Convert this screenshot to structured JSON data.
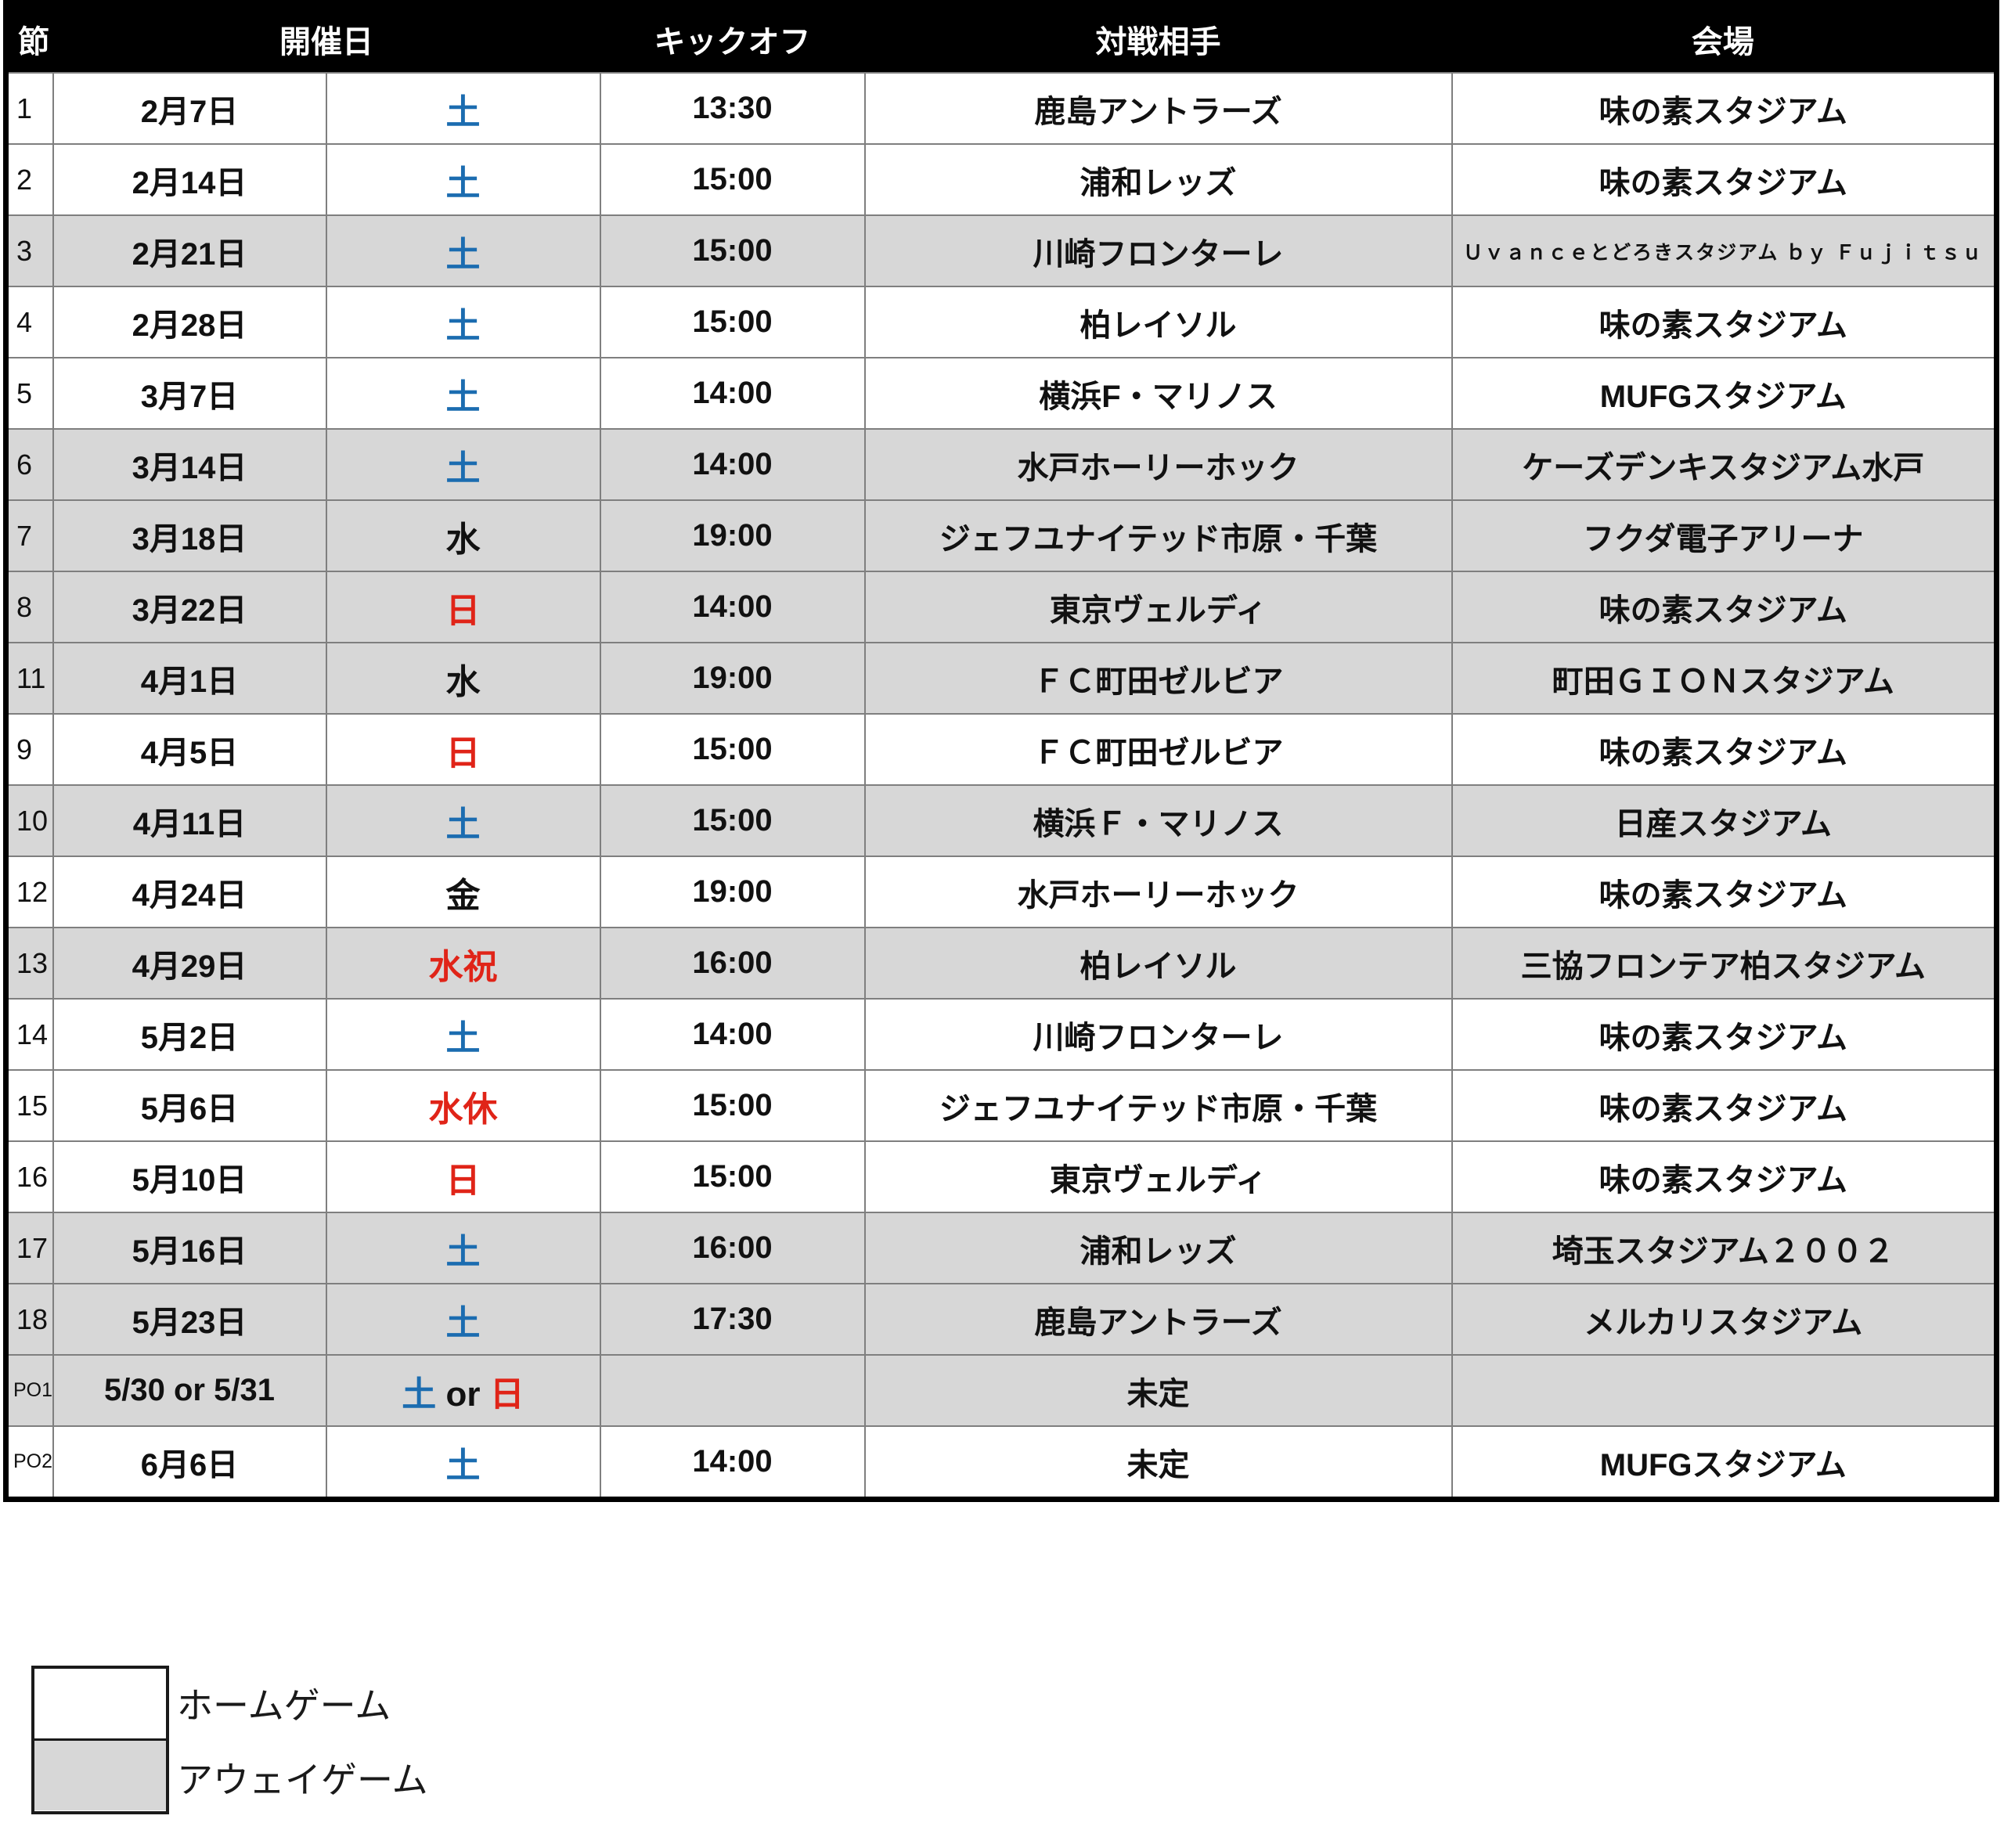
{
  "table": {
    "headers": {
      "round": "節",
      "date": "開催日",
      "kickoff": "キックオフ",
      "opponent": "対戦相手",
      "venue": "会場"
    },
    "rows": [
      {
        "round": "1",
        "date": "2月7日",
        "day": [
          {
            "text": "土",
            "color": "blue"
          }
        ],
        "kickoff": "13:30",
        "opponent": "鹿島アントラーズ",
        "venue": "味の素スタジアム",
        "home": true
      },
      {
        "round": "2",
        "date": "2月14日",
        "day": [
          {
            "text": "土",
            "color": "blue"
          }
        ],
        "kickoff": "15:00",
        "opponent": "浦和レッズ",
        "venue": "味の素スタジアム",
        "home": true
      },
      {
        "round": "3",
        "date": "2月21日",
        "day": [
          {
            "text": "土",
            "color": "blue"
          }
        ],
        "kickoff": "15:00",
        "opponent": "川崎フロンターレ",
        "venue": "Ｕｖａｎｃｅとどろきスタジアム ｂｙ Ｆｕｊｉｔｓｕ",
        "venue_small": true,
        "home": false
      },
      {
        "round": "4",
        "date": "2月28日",
        "day": [
          {
            "text": "土",
            "color": "blue"
          }
        ],
        "kickoff": "15:00",
        "opponent": "柏レイソル",
        "venue": "味の素スタジアム",
        "home": true
      },
      {
        "round": "5",
        "date": "3月7日",
        "day": [
          {
            "text": "土",
            "color": "blue"
          }
        ],
        "kickoff": "14:00",
        "opponent": "横浜F・マリノス",
        "venue": "MUFGスタジアム",
        "home": true
      },
      {
        "round": "6",
        "date": "3月14日",
        "day": [
          {
            "text": "土",
            "color": "blue"
          }
        ],
        "kickoff": "14:00",
        "opponent": "水戸ホーリーホック",
        "venue": "ケーズデンキスタジアム水戸",
        "home": false
      },
      {
        "round": "7",
        "date": "3月18日",
        "day": [
          {
            "text": "水",
            "color": "black"
          }
        ],
        "kickoff": "19:00",
        "opponent": "ジェフユナイテッド市原・千葉",
        "venue": "フクダ電子アリーナ",
        "home": false
      },
      {
        "round": "8",
        "date": "3月22日",
        "day": [
          {
            "text": "日",
            "color": "red"
          }
        ],
        "kickoff": "14:00",
        "opponent": "東京ヴェルディ",
        "venue": "味の素スタジアム",
        "home": false
      },
      {
        "round": "11",
        "date": "4月1日",
        "day": [
          {
            "text": "水",
            "color": "black"
          }
        ],
        "kickoff": "19:00",
        "opponent": "ＦＣ町田ゼルビア",
        "venue": "町田ＧＩＯＮスタジアム",
        "home": false
      },
      {
        "round": "9",
        "date": "4月5日",
        "day": [
          {
            "text": "日",
            "color": "red"
          }
        ],
        "kickoff": "15:00",
        "opponent": "ＦＣ町田ゼルビア",
        "venue": "味の素スタジアム",
        "home": true
      },
      {
        "round": "10",
        "date": "4月11日",
        "day": [
          {
            "text": "土",
            "color": "blue"
          }
        ],
        "kickoff": "15:00",
        "opponent": "横浜Ｆ・マリノス",
        "venue": "日産スタジアム",
        "home": false
      },
      {
        "round": "12",
        "date": "4月24日",
        "day": [
          {
            "text": "金",
            "color": "black"
          }
        ],
        "kickoff": "19:00",
        "opponent": "水戸ホーリーホック",
        "venue": "味の素スタジアム",
        "home": true
      },
      {
        "round": "13",
        "date": "4月29日",
        "day": [
          {
            "text": "水祝",
            "color": "red"
          }
        ],
        "kickoff": "16:00",
        "opponent": "柏レイソル",
        "venue": "三協フロンテア柏スタジアム",
        "home": false
      },
      {
        "round": "14",
        "date": "5月2日",
        "day": [
          {
            "text": "土",
            "color": "blue"
          }
        ],
        "kickoff": "14:00",
        "opponent": "川崎フロンターレ",
        "venue": "味の素スタジアム",
        "home": true
      },
      {
        "round": "15",
        "date": "5月6日",
        "day": [
          {
            "text": "水休",
            "color": "red"
          }
        ],
        "kickoff": "15:00",
        "opponent": "ジェフユナイテッド市原・千葉",
        "venue": "味の素スタジアム",
        "home": true
      },
      {
        "round": "16",
        "date": "5月10日",
        "day": [
          {
            "text": "日",
            "color": "red"
          }
        ],
        "kickoff": "15:00",
        "opponent": "東京ヴェルディ",
        "venue": "味の素スタジアム",
        "home": true
      },
      {
        "round": "17",
        "date": "5月16日",
        "day": [
          {
            "text": "土",
            "color": "blue"
          }
        ],
        "kickoff": "16:00",
        "opponent": "浦和レッズ",
        "venue": "埼玉スタジアム２００２",
        "home": false
      },
      {
        "round": "18",
        "date": "5月23日",
        "day": [
          {
            "text": "土",
            "color": "blue"
          }
        ],
        "kickoff": "17:30",
        "opponent": "鹿島アントラーズ",
        "venue": "メルカリスタジアム",
        "home": false
      },
      {
        "round": "PO1",
        "date": "5/30 or 5/31",
        "day": [
          {
            "text": "土",
            "color": "blue"
          },
          {
            "text": " or ",
            "color": "black"
          },
          {
            "text": "日",
            "color": "red"
          }
        ],
        "kickoff": "",
        "opponent": "未定",
        "venue": "",
        "home": false,
        "po": true
      },
      {
        "round": "PO2",
        "date": "6月6日",
        "day": [
          {
            "text": "土",
            "color": "blue"
          }
        ],
        "kickoff": "14:00",
        "opponent": "未定",
        "venue": "MUFGスタジアム",
        "home": true,
        "po": true
      }
    ]
  },
  "legend": {
    "home_label": "ホームゲーム",
    "away_label": "アウェイゲーム"
  },
  "colors": {
    "header_bg": "#000000",
    "header_text": "#ffffff",
    "body_text": "#111111",
    "home_row_bg": "#ffffff",
    "away_row_bg": "#d7d7d7",
    "saturday_blue": "#1b6cb0",
    "sunday_holiday_red": "#e02418",
    "grid_line": "#7f7f7f"
  }
}
